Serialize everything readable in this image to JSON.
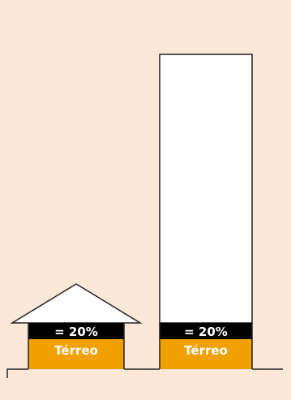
{
  "colors": {
    "background": "#fde8d8",
    "ground_floor": "#f0a000",
    "band": "#000000",
    "upper": "#ffffff",
    "outline": "#222222"
  },
  "house": {
    "percent_label": "= 20%",
    "floor_label": "Térreo"
  },
  "tower": {
    "percent_label": "= 20%",
    "floor_label": "Térreo"
  }
}
